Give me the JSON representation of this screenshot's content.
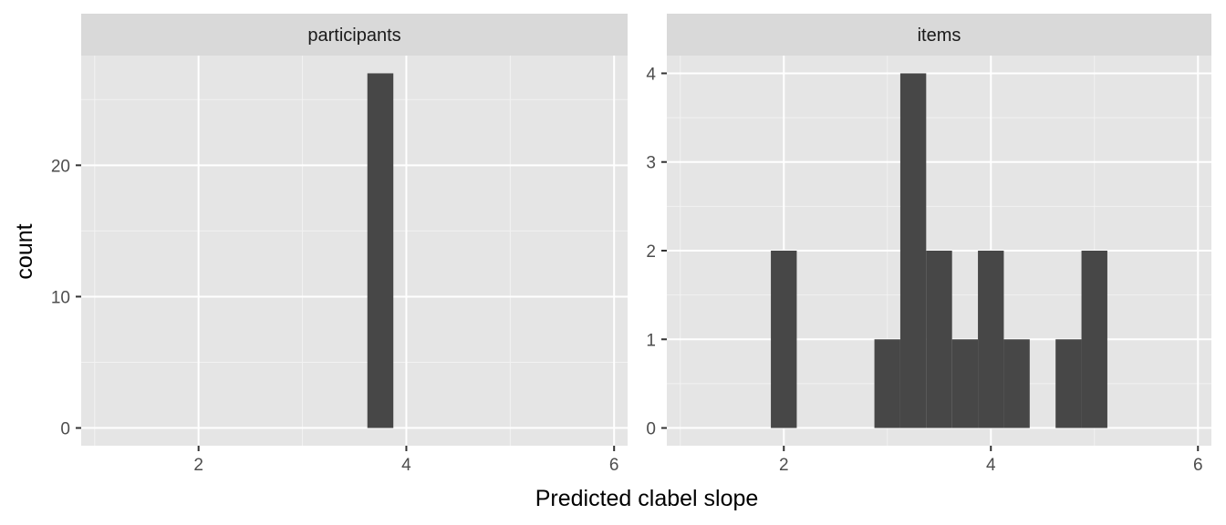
{
  "chart_data": {
    "type": "bar",
    "subtype": "faceted-histogram",
    "xlabel": "Predicted clabel slope",
    "ylabel": "count",
    "bar_color": "#474747",
    "panel_background": "#e5e5e5",
    "strip_background": "#d9d9d9",
    "grid": true,
    "bin_width": 0.25,
    "facets": [
      {
        "label": "participants",
        "xlim": [
          0.87,
          6.13
        ],
        "ylim": [
          -1.35,
          28.35
        ],
        "xticks": [
          2,
          4,
          6
        ],
        "yticks": [
          0,
          10,
          20
        ],
        "bins": [
          {
            "start": 3.625,
            "end": 3.875,
            "count": 27
          }
        ]
      },
      {
        "label": "items",
        "xlim": [
          0.87,
          6.13
        ],
        "ylim": [
          -0.2,
          4.2
        ],
        "xticks": [
          2,
          4,
          6
        ],
        "yticks": [
          0,
          1,
          2,
          3,
          4
        ],
        "bins": [
          {
            "start": 1.875,
            "end": 2.125,
            "count": 2
          },
          {
            "start": 2.875,
            "end": 3.125,
            "count": 1
          },
          {
            "start": 3.125,
            "end": 3.375,
            "count": 4
          },
          {
            "start": 3.375,
            "end": 3.625,
            "count": 2
          },
          {
            "start": 3.625,
            "end": 3.875,
            "count": 1
          },
          {
            "start": 3.875,
            "end": 4.125,
            "count": 2
          },
          {
            "start": 4.125,
            "end": 4.375,
            "count": 1
          },
          {
            "start": 4.625,
            "end": 4.875,
            "count": 1
          },
          {
            "start": 4.875,
            "end": 5.125,
            "count": 2
          }
        ]
      }
    ]
  }
}
